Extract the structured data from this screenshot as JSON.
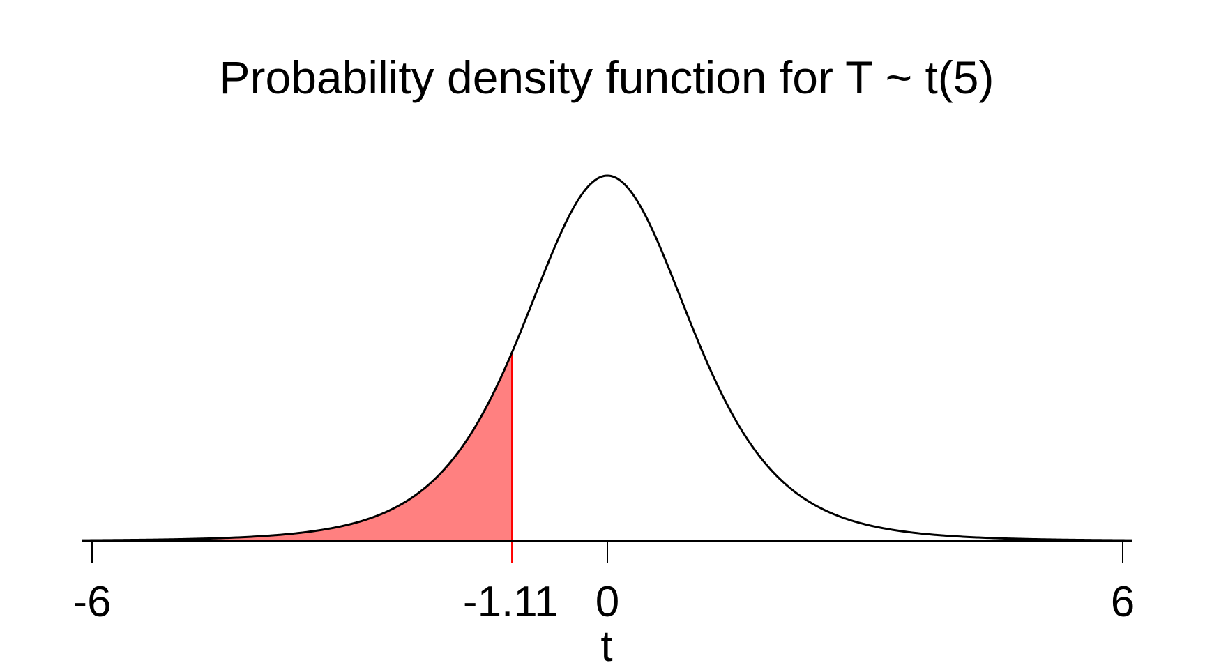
{
  "chart_data": {
    "type": "area",
    "title": "Probability density function for T ~ t(5)",
    "xlabel": "t",
    "ylabel": "",
    "distribution": "t",
    "degrees_of_freedom": 5,
    "xlim": [
      -6,
      6
    ],
    "ylim": [
      0,
      0.38
    ],
    "x_ticks": [
      {
        "value": -6,
        "label": "-6"
      },
      {
        "value": 0,
        "label": "0"
      },
      {
        "value": 6,
        "label": "6"
      }
    ],
    "marked_value": {
      "value": -1.11,
      "label": "-1.11"
    },
    "shaded_region": {
      "from": -6,
      "to": -1.11
    },
    "y_axis_shown": false,
    "grid": false,
    "legend": "none",
    "colors": {
      "curve": "#000000",
      "axis": "#000000",
      "highlight": "#ff0000",
      "shade": "#ff8080"
    }
  }
}
